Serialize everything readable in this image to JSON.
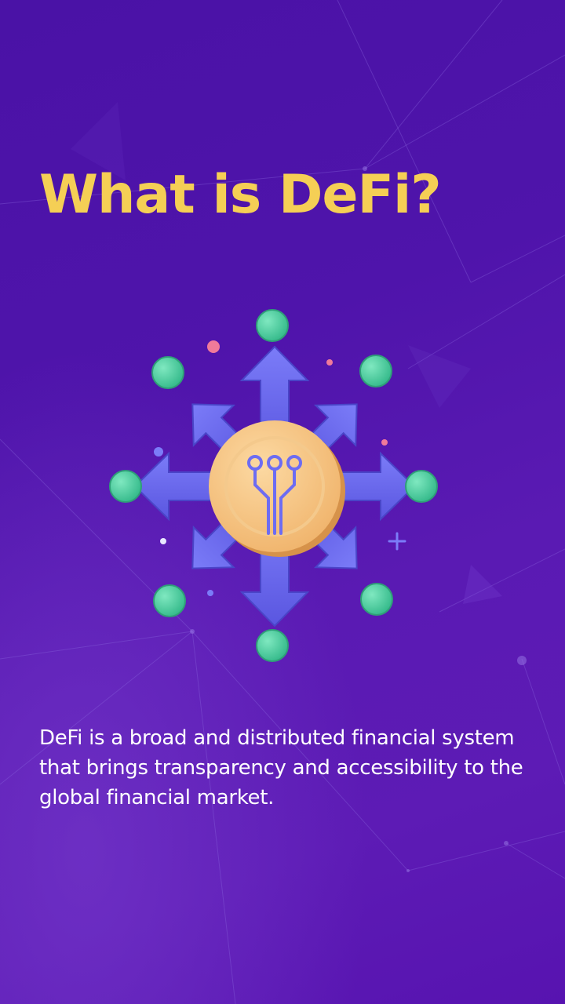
{
  "screen": {
    "title": "What is DeFi?",
    "description": "DeFi is a broad and distributed financial system that brings transparency and accessibility to the global financial market."
  },
  "colors": {
    "background": "#4f14ab",
    "title": "#f5cf55",
    "text": "#ffffff",
    "arrow": "#6d6cf2",
    "coin": "#f7c98a",
    "node": "#4fcf9f"
  },
  "illustration": {
    "icon": "defi-network-icon"
  }
}
